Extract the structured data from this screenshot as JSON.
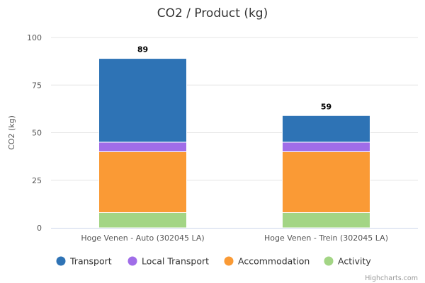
{
  "chart_data": {
    "type": "bar",
    "stacked": true,
    "title": "CO2 / Product (kg)",
    "xlabel": "",
    "ylabel": "CO2 (kg)",
    "ylim": [
      0,
      100
    ],
    "yticks": [
      0,
      25,
      50,
      75,
      100
    ],
    "grid": true,
    "legend_position": "bottom",
    "categories": [
      "Hoge Venen - Auto (302045 LA)",
      "Hoge Venen - Trein (302045 LA)"
    ],
    "series": [
      {
        "name": "Activity",
        "color": "#a3d585",
        "values": [
          8,
          8
        ]
      },
      {
        "name": "Accommodation",
        "color": "#fa9a35",
        "values": [
          32,
          32
        ]
      },
      {
        "name": "Local Transport",
        "color": "#a06de8",
        "values": [
          5,
          5
        ]
      },
      {
        "name": "Transport",
        "color": "#2e73b5",
        "values": [
          44,
          14
        ]
      }
    ],
    "totals": [
      "89",
      "59"
    ],
    "legend_order": [
      "Transport",
      "Local Transport",
      "Accommodation",
      "Activity"
    ],
    "credits": "Highcharts.com"
  }
}
